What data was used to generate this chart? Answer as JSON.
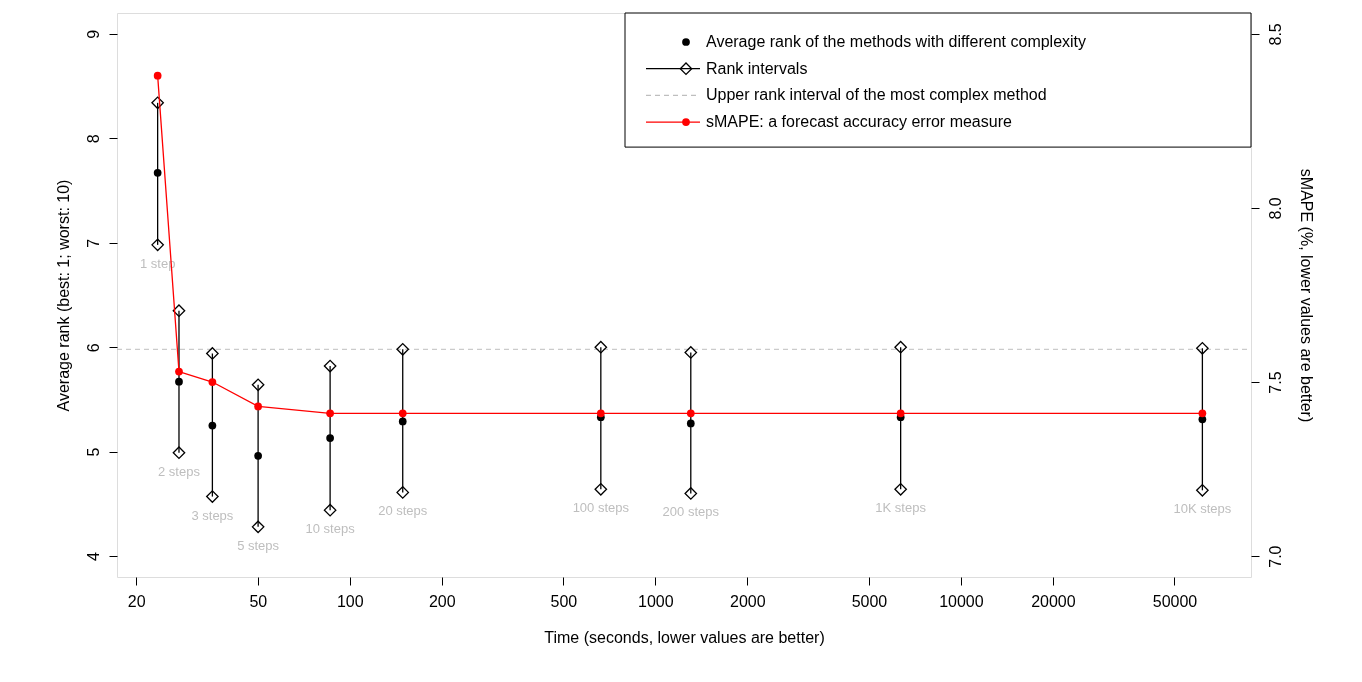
{
  "chart_data": {
    "type": "scatter",
    "x": [
      23.5,
      27.6,
      35.5,
      50.1,
      86.2,
      149,
      663,
      1306,
      6350,
      61700
    ],
    "series": [
      {
        "name": "Average rank of the methods with different complexity",
        "marker": "circle",
        "color": "#000000",
        "values": [
          7.67,
          5.67,
          5.25,
          4.96,
          5.13,
          5.29,
          5.33,
          5.27,
          5.33,
          5.31
        ],
        "errors": [
          [
            6.98,
            8.34
          ],
          [
            4.99,
            6.35
          ],
          [
            4.57,
            5.94
          ],
          [
            4.28,
            5.64
          ],
          [
            4.44,
            5.82
          ],
          [
            4.61,
            5.98
          ],
          [
            4.64,
            6.0
          ],
          [
            4.6,
            5.95
          ],
          [
            4.64,
            6.0
          ],
          [
            4.63,
            5.99
          ]
        ]
      },
      {
        "name": "Rank intervals",
        "marker": "diamond",
        "color": "#000000",
        "values": [
          8.34,
          6.35,
          5.94,
          5.64,
          5.82,
          5.98,
          6.0,
          5.95,
          6.0,
          5.99
        ]
      },
      {
        "marker": "diamond",
        "color": "#000000",
        "values": [
          6.98,
          4.99,
          4.57,
          4.28,
          4.44,
          4.61,
          4.64,
          4.6,
          4.64,
          4.63
        ]
      },
      {
        "name": "sMAPE: a forecast accuracy error measure",
        "type": "line",
        "marker": "circle",
        "color": "#ff0000",
        "axis": "y2",
        "values": [
          8.38,
          7.53,
          7.5,
          7.43,
          7.41,
          7.41,
          7.41,
          7.41,
          7.41,
          7.41
        ]
      }
    ],
    "ref_lines": [
      {
        "axis": "y",
        "value": 5.98,
        "label": "Upper rank interval of the most complex method",
        "color": "#bebebe",
        "line_style": "dashed"
      }
    ],
    "annotations": [
      {
        "text": "1 step",
        "x": 23.5,
        "y": 6.98
      },
      {
        "text": "2 steps",
        "x": 27.6,
        "y": 4.99
      },
      {
        "text": "3 steps",
        "x": 35.5,
        "y": 4.57
      },
      {
        "text": "5 steps",
        "x": 50.1,
        "y": 4.28
      },
      {
        "text": "10 steps",
        "x": 86.2,
        "y": 4.44
      },
      {
        "text": "20 steps",
        "x": 149,
        "y": 4.61
      },
      {
        "text": "100 steps",
        "x": 663,
        "y": 4.64
      },
      {
        "text": "200 steps",
        "x": 1306,
        "y": 4.6
      },
      {
        "text": "1K steps",
        "x": 6350,
        "y": 4.64
      },
      {
        "text": "10K steps",
        "x": 61700,
        "y": 4.63
      }
    ],
    "xlabel": "Time (seconds, lower values are better)",
    "ylabel": "Average rank (best: 1; worst: 10)",
    "y2label": "sMAPE (%, lower values are better)",
    "log": "x",
    "xlim": [
      17.3,
      89000
    ],
    "xticks": [
      20,
      50,
      100,
      200,
      500,
      1000,
      2000,
      5000,
      10000,
      20000,
      50000
    ],
    "ylim": [
      3.8,
      9.2
    ],
    "yticks": [
      4,
      5,
      6,
      7,
      8,
      9
    ],
    "y2lim": [
      6.94,
      8.56
    ],
    "y2ticks": [
      {
        "value": 7,
        "label": "7.0"
      },
      7.5,
      {
        "value": 8,
        "label": "8.0"
      },
      8.5
    ],
    "grid": false,
    "legend": "top right"
  }
}
